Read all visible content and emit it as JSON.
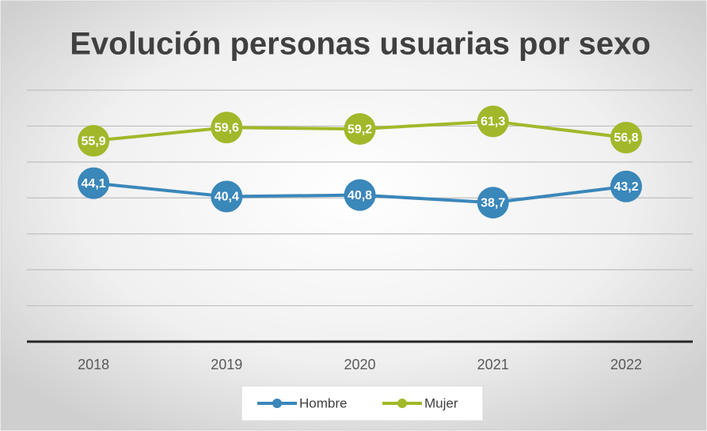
{
  "chart_data": {
    "type": "line",
    "title": "Evolución personas usuarias por sexo",
    "categories": [
      "2018",
      "2019",
      "2020",
      "2021",
      "2022"
    ],
    "series": [
      {
        "name": "Hombre",
        "color": "#3a87ba",
        "values": [
          44.1,
          40.4,
          40.8,
          38.7,
          43.2
        ],
        "value_labels": [
          "44,1",
          "40,4",
          "40,8",
          "38,7",
          "43,2"
        ]
      },
      {
        "name": "Mujer",
        "color": "#a2b82a",
        "values": [
          55.9,
          59.6,
          59.2,
          61.3,
          56.8
        ],
        "value_labels": [
          "55,9",
          "59,6",
          "59,2",
          "61,3",
          "56,8"
        ]
      }
    ],
    "ylim": [
      0,
      70
    ],
    "yticks": [
      0,
      10,
      20,
      30,
      40,
      50,
      60,
      70
    ],
    "grid": true,
    "legend": "bottom"
  }
}
